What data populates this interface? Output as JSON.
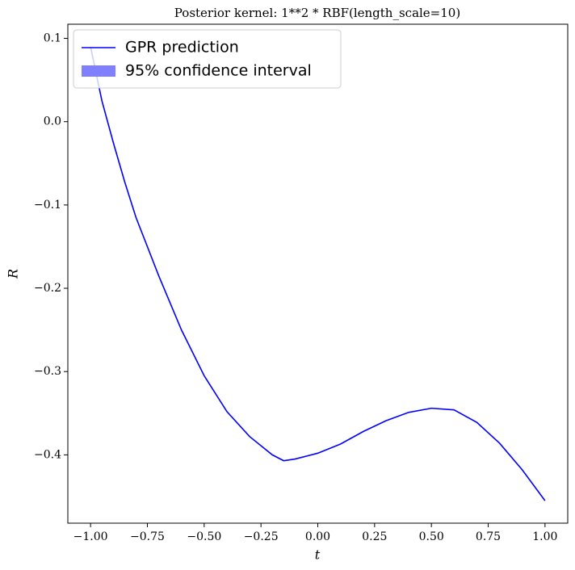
{
  "chart_data": {
    "type": "line",
    "title": "Posterior kernel: 1**2 * RBF(length_scale=10)",
    "x_label": "t",
    "y_label": "R",
    "x": [
      -1.0,
      -0.95,
      -0.9,
      -0.85,
      -0.8,
      -0.7,
      -0.6,
      -0.5,
      -0.4,
      -0.3,
      -0.2,
      -0.15,
      -0.1,
      0.0,
      0.1,
      0.2,
      0.3,
      0.4,
      0.5,
      0.6,
      0.7,
      0.8,
      0.9,
      1.0
    ],
    "series": [
      {
        "name": "GPR prediction",
        "color": "#0000ff",
        "values": [
          0.09,
          0.025,
          -0.025,
          -0.072,
          -0.115,
          -0.185,
          -0.25,
          -0.305,
          -0.348,
          -0.378,
          -0.4,
          -0.407,
          -0.405,
          -0.398,
          -0.387,
          -0.372,
          -0.359,
          -0.349,
          -0.344,
          -0.346,
          -0.361,
          -0.386,
          -0.418,
          -0.455
        ]
      }
    ],
    "bands": [
      {
        "name": "95% confidence interval",
        "color": "#8080ff"
      }
    ],
    "xlim": [
      -1.1,
      1.1
    ],
    "ylim": [
      -0.482,
      0.117
    ],
    "xticks": [
      {
        "value": -1,
        "label": "−1.00"
      },
      {
        "value": -0.75,
        "label": "−0.75"
      },
      {
        "value": -0.5,
        "label": "−0.50"
      },
      {
        "value": -0.25,
        "label": "−0.25"
      },
      {
        "value": 0,
        "label": "0.00"
      },
      {
        "value": 0.25,
        "label": "0.25"
      },
      {
        "value": 0.5,
        "label": "0.50"
      },
      {
        "value": 0.75,
        "label": "0.75"
      },
      {
        "value": 1,
        "label": "1.00"
      }
    ],
    "yticks": [
      {
        "value": 0.1,
        "label": "0.1"
      },
      {
        "value": 0,
        "label": "0.0"
      },
      {
        "value": -0.1,
        "label": "−0.1"
      },
      {
        "value": -0.2,
        "label": "−0.2"
      },
      {
        "value": -0.3,
        "label": "−0.3"
      },
      {
        "value": -0.4,
        "label": "−0.4"
      }
    ],
    "legend": "upper left",
    "grid": false
  }
}
